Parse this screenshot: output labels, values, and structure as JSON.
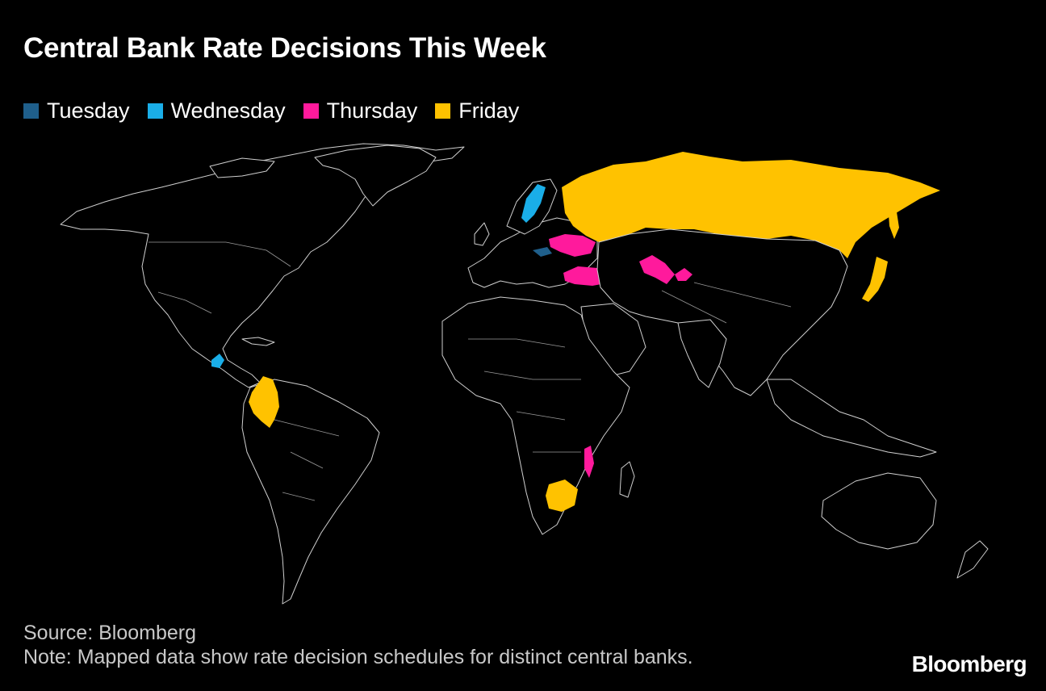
{
  "title": "Central Bank Rate Decisions This Week",
  "legend": [
    {
      "label": "Tuesday",
      "color": "#1f5f8b"
    },
    {
      "label": "Wednesday",
      "color": "#1aaee8"
    },
    {
      "label": "Thursday",
      "color": "#ff1a9c"
    },
    {
      "label": "Friday",
      "color": "#ffc200"
    }
  ],
  "highlighted_countries": {
    "Tuesday": [
      "Hungary"
    ],
    "Wednesday": [
      "Sweden",
      "Guatemala"
    ],
    "Thursday": [
      "Ukraine",
      "Turkey",
      "Uzbekistan",
      "Kyrgyzstan",
      "Malawi"
    ],
    "Friday": [
      "Russia",
      "Japan",
      "Colombia",
      "Botswana"
    ]
  },
  "source": "Source: Bloomberg",
  "note": "Note: Mapped data show rate decision schedules for distinct central banks.",
  "logo": "Bloomberg"
}
